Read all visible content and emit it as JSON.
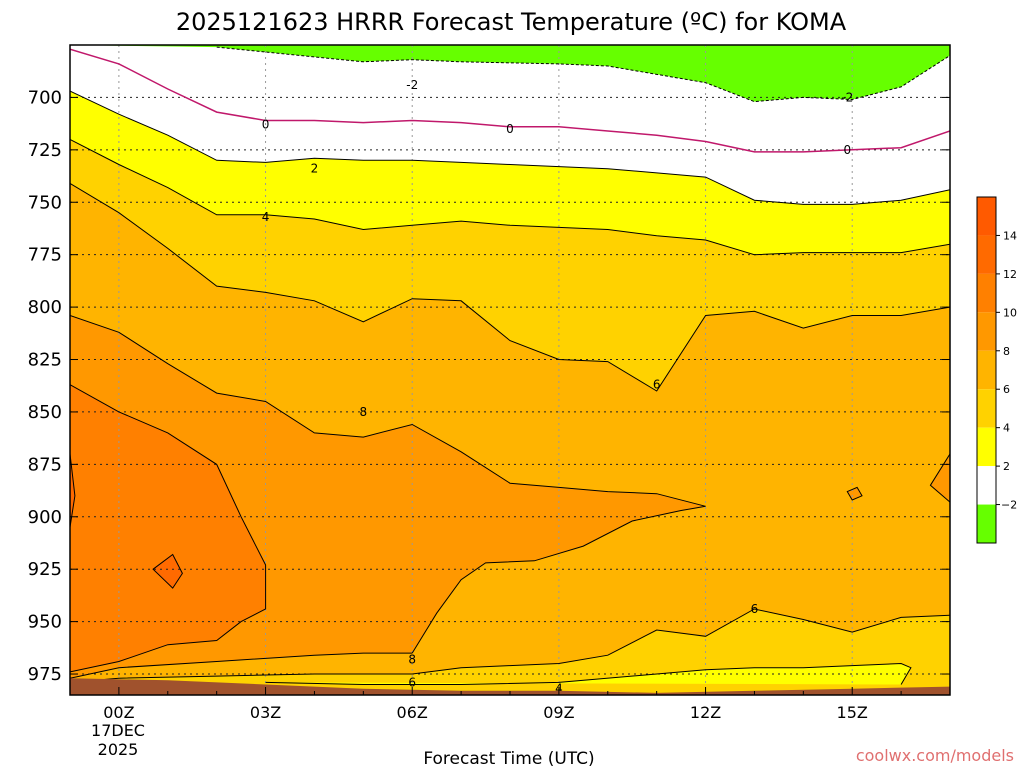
{
  "chart_data": {
    "type": "contour",
    "title": "2025121623 HRRR Forecast Temperature (ºC) for KOMA",
    "xlabel": "Forecast Time (UTC)",
    "ylabel": "",
    "x_ticks": [
      "00Z",
      "03Z",
      "06Z",
      "09Z",
      "12Z",
      "15Z"
    ],
    "x_tick_hours": [
      0,
      3,
      6,
      9,
      12,
      15
    ],
    "x_range_hours": [
      -1,
      17
    ],
    "date_label": [
      "17DEC",
      "2025"
    ],
    "y_ticks": [
      "700",
      "725",
      "750",
      "775",
      "800",
      "825",
      "850",
      "875",
      "900",
      "925",
      "950",
      "975"
    ],
    "y_tick_values": [
      700,
      725,
      750,
      775,
      800,
      825,
      850,
      875,
      900,
      925,
      950,
      975
    ],
    "y_range_hpa": [
      675,
      985
    ],
    "y_axis_reversed": true,
    "grid": true,
    "colorbar": {
      "placement": "right",
      "labels": [
        "14",
        "12",
        "10",
        "8",
        "6",
        "4",
        "2",
        "−2"
      ],
      "bins": [
        {
          "from": 14,
          "to": 16,
          "color": "#ff5a00"
        },
        {
          "from": 12,
          "to": 14,
          "color": "#ff6a00"
        },
        {
          "from": 10,
          "to": 12,
          "color": "#ff8000"
        },
        {
          "from": 8,
          "to": 10,
          "color": "#ff9800"
        },
        {
          "from": 6,
          "to": 8,
          "color": "#ffb400"
        },
        {
          "from": 4,
          "to": 6,
          "color": "#ffd200"
        },
        {
          "from": 2,
          "to": 4,
          "color": "#ffff00"
        },
        {
          "from": -2,
          "to": 2,
          "color": "#ffffff"
        },
        {
          "from": -4,
          "to": -2,
          "color": "#66ff00"
        }
      ]
    },
    "contours": [
      {
        "level": -2,
        "dashed": true,
        "labels": [
          {
            "text": "-2",
            "h": 6.0,
            "p": 694
          },
          {
            "text": "-2",
            "h": 14.9,
            "p": 700
          }
        ],
        "points": [
          [
            2,
            676
          ],
          [
            5,
            683
          ],
          [
            6,
            682
          ],
          [
            7,
            683
          ],
          [
            9,
            684
          ],
          [
            10,
            685
          ],
          [
            12,
            693
          ],
          [
            13,
            702
          ],
          [
            14,
            700
          ],
          [
            15,
            701
          ],
          [
            16,
            695
          ],
          [
            17,
            680
          ]
        ]
      },
      {
        "level": 0,
        "color": "#c0186b",
        "labels": [
          {
            "text": "0",
            "h": 3.0,
            "p": 713
          },
          {
            "text": "0",
            "h": 8.0,
            "p": 715
          },
          {
            "text": "0",
            "h": 14.9,
            "p": 725
          }
        ],
        "points": [
          [
            -1,
            677
          ],
          [
            0,
            684
          ],
          [
            1,
            696
          ],
          [
            2,
            707
          ],
          [
            3,
            711
          ],
          [
            4,
            711
          ],
          [
            5,
            712
          ],
          [
            6,
            711
          ],
          [
            7,
            712
          ],
          [
            8,
            714
          ],
          [
            9,
            714
          ],
          [
            10,
            716
          ],
          [
            11,
            718
          ],
          [
            12,
            721
          ],
          [
            13,
            726
          ],
          [
            14,
            726
          ],
          [
            15,
            725
          ],
          [
            16,
            724
          ],
          [
            17,
            716
          ]
        ]
      },
      {
        "level": 2,
        "labels": [
          {
            "text": "2",
            "h": 4.0,
            "p": 734
          }
        ],
        "points": [
          [
            -1,
            697
          ],
          [
            0,
            708
          ],
          [
            1,
            718
          ],
          [
            2,
            730
          ],
          [
            3,
            731
          ],
          [
            4,
            729
          ],
          [
            5,
            730
          ],
          [
            6,
            730
          ],
          [
            7,
            731
          ],
          [
            8,
            732
          ],
          [
            9,
            733
          ],
          [
            10,
            734
          ],
          [
            11,
            736
          ],
          [
            12,
            738
          ],
          [
            13,
            749
          ],
          [
            14,
            751
          ],
          [
            15,
            751
          ],
          [
            16,
            749
          ],
          [
            17,
            744
          ]
        ]
      },
      {
        "level": 4,
        "labels": [
          {
            "text": "4",
            "h": 3.0,
            "p": 757
          }
        ],
        "points": [
          [
            -1,
            720
          ],
          [
            0,
            732
          ],
          [
            1,
            743
          ],
          [
            2,
            756
          ],
          [
            3,
            756
          ],
          [
            4,
            758
          ],
          [
            5,
            763
          ],
          [
            6,
            761
          ],
          [
            7,
            759
          ],
          [
            8,
            761
          ],
          [
            9,
            762
          ],
          [
            10,
            763
          ],
          [
            11,
            766
          ],
          [
            12,
            768
          ],
          [
            13,
            775
          ],
          [
            14,
            774
          ],
          [
            15,
            774
          ],
          [
            16,
            774
          ],
          [
            17,
            770
          ]
        ]
      },
      {
        "level": 6,
        "labels": [
          {
            "text": "6",
            "h": 11.0,
            "p": 837
          }
        ],
        "points": [
          [
            -1,
            741
          ],
          [
            0,
            755
          ],
          [
            1,
            772
          ],
          [
            2,
            790
          ],
          [
            3,
            793
          ],
          [
            4,
            797
          ],
          [
            5,
            807
          ],
          [
            6,
            796
          ],
          [
            7,
            797
          ],
          [
            8,
            816
          ],
          [
            9,
            825
          ],
          [
            10,
            826
          ],
          [
            11,
            840
          ],
          [
            12,
            804
          ],
          [
            13,
            802
          ],
          [
            14,
            810
          ],
          [
            15,
            804
          ],
          [
            16,
            804
          ],
          [
            17,
            800
          ]
        ]
      },
      {
        "level": 8,
        "labels": [
          {
            "text": "8",
            "h": 5.0,
            "p": 850
          }
        ],
        "points": [
          [
            -1,
            804
          ],
          [
            0,
            812
          ],
          [
            1,
            827
          ],
          [
            2,
            841
          ],
          [
            3,
            845
          ],
          [
            4,
            860
          ],
          [
            5,
            862
          ],
          [
            6,
            856
          ],
          [
            7,
            869
          ],
          [
            8,
            884
          ],
          [
            9,
            886
          ],
          [
            10,
            888
          ],
          [
            11,
            889
          ],
          [
            12,
            895
          ],
          [
            11.5,
            897
          ],
          [
            10.5,
            902
          ],
          [
            9.5,
            914
          ],
          [
            8.5,
            921
          ],
          [
            7.5,
            922
          ],
          [
            7,
            930
          ],
          [
            6.5,
            946
          ],
          [
            6,
            965
          ]
        ]
      },
      {
        "level": 8,
        "labels": [
          {
            "text": "8",
            "h": 6.0,
            "p": 968
          }
        ],
        "points": [
          [
            -1,
            977
          ],
          [
            0,
            972
          ],
          [
            2,
            969
          ],
          [
            4,
            966
          ],
          [
            5,
            965
          ],
          [
            6,
            965
          ]
        ]
      },
      {
        "level": 6,
        "labels": [
          {
            "text": "6",
            "h": 13.0,
            "p": 944
          },
          {
            "text": "6",
            "h": 6.0,
            "p": 979
          }
        ],
        "points": [
          [
            -1,
            979
          ],
          [
            0,
            977
          ],
          [
            2,
            976
          ],
          [
            4,
            975
          ],
          [
            5,
            975
          ],
          [
            6,
            975
          ],
          [
            7,
            972
          ],
          [
            8,
            971
          ],
          [
            9,
            970
          ],
          [
            10,
            966
          ],
          [
            11,
            954
          ],
          [
            12,
            957
          ],
          [
            13,
            944
          ],
          [
            14,
            949
          ],
          [
            15,
            955
          ],
          [
            16,
            948
          ],
          [
            17,
            947
          ]
        ]
      },
      {
        "level": 4,
        "labels": [
          {
            "text": "4",
            "h": 9.0,
            "p": 982
          }
        ],
        "points": [
          [
            3,
            979
          ],
          [
            5,
            980
          ],
          [
            7,
            980
          ],
          [
            9,
            979
          ],
          [
            11,
            975
          ],
          [
            12,
            973
          ],
          [
            13,
            972
          ],
          [
            14,
            972
          ],
          [
            15,
            971
          ],
          [
            16,
            970
          ],
          [
            16.2,
            972
          ],
          [
            16,
            980
          ]
        ]
      },
      {
        "level": 10,
        "labels": [],
        "points": [
          [
            -1,
            837
          ],
          [
            0,
            850
          ],
          [
            1,
            860
          ],
          [
            2,
            875
          ],
          [
            2.5,
            900
          ],
          [
            3,
            923
          ],
          [
            3,
            944
          ],
          [
            2.5,
            950
          ],
          [
            2,
            959
          ],
          [
            1,
            961
          ],
          [
            0,
            969
          ],
          [
            -1,
            974
          ]
        ]
      },
      {
        "level": 12,
        "labels": [],
        "points": [
          [
            -1,
            870
          ],
          [
            -0.9,
            890
          ],
          [
            -1,
            905
          ]
        ]
      },
      {
        "level": 12,
        "labels": [],
        "points": [
          [
            0.7,
            925
          ],
          [
            1.1,
            918
          ],
          [
            1.3,
            927
          ],
          [
            1.1,
            934
          ],
          [
            0.7,
            925
          ]
        ]
      },
      {
        "level": 8,
        "labels": [],
        "points": [
          [
            14.9,
            888
          ],
          [
            15.1,
            886
          ],
          [
            15.2,
            890
          ],
          [
            15.0,
            892
          ],
          [
            14.9,
            888
          ]
        ]
      },
      {
        "level": 8,
        "labels": [],
        "points": [
          [
            17,
            870
          ],
          [
            16.6,
            885
          ],
          [
            17,
            893
          ]
        ]
      }
    ],
    "ground_color": "#a0522d"
  },
  "watermark": "coolwx.com/models"
}
